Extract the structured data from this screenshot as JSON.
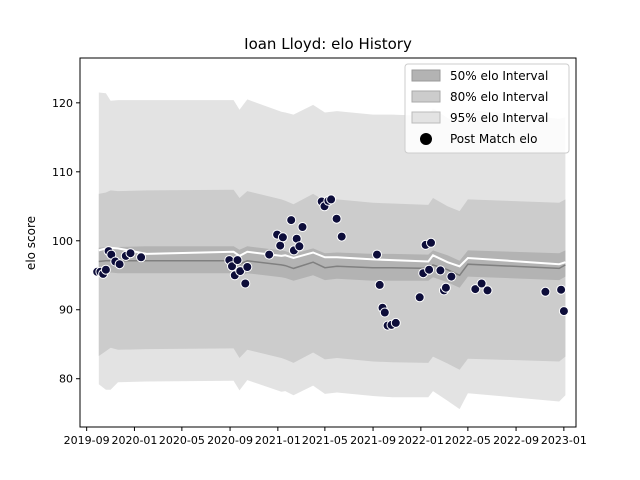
{
  "chart_data": {
    "type": "line",
    "title": "Ioan Lloyd: elo History",
    "xlabel": "",
    "ylabel": "elo score",
    "xlim": [
      "2019-08-15",
      "2023-02-01"
    ],
    "ylim": [
      73,
      126.5
    ],
    "x_ticks": [
      "2019-09",
      "2020-01",
      "2020-05",
      "2020-09",
      "2021-01",
      "2021-05",
      "2021-09",
      "2022-01",
      "2022-05",
      "2022-09",
      "2023-01"
    ],
    "y_ticks": [
      80,
      90,
      100,
      110,
      120
    ],
    "legend": {
      "placement": "top-right",
      "entries": [
        "50% elo Interval",
        "80% elo Interval",
        "95% elo Interval",
        "Post Match elo"
      ]
    },
    "colors": {
      "band50": "#b3b3b3",
      "band80": "#cccccc",
      "band95": "#e3e3e3",
      "mean_line": "#ffffff",
      "median_line": "#808080",
      "points": "#0d0d3a"
    },
    "bands": {
      "x": [
        "2019-10-02",
        "2019-10-20",
        "2019-11-01",
        "2019-11-20",
        "2020-02-01",
        "2020-09-10",
        "2020-09-25",
        "2020-10-15",
        "2021-01-10",
        "2021-01-20",
        "2021-02-10",
        "2021-04-01",
        "2021-05-01",
        "2021-06-01",
        "2021-09-01",
        "2021-10-20",
        "2022-01-20",
        "2022-02-01",
        "2022-03-10",
        "2022-04-10",
        "2022-05-01",
        "2022-12-20",
        "2023-01-05"
      ],
      "p50": [
        [
          95.2,
          99.0
        ],
        [
          95.4,
          99.1
        ],
        [
          95.4,
          99.1
        ],
        [
          95.3,
          99.1
        ],
        [
          95.3,
          99.2
        ],
        [
          95.3,
          99.2
        ],
        [
          94.8,
          98.7
        ],
        [
          95.3,
          99.2
        ],
        [
          94.7,
          98.6
        ],
        [
          94.6,
          98.5
        ],
        [
          94.2,
          98.1
        ],
        [
          95.0,
          98.9
        ],
        [
          94.3,
          98.2
        ],
        [
          94.5,
          98.3
        ],
        [
          94.2,
          98.1
        ],
        [
          94.2,
          98.1
        ],
        [
          94.2,
          98.0
        ],
        [
          94.7,
          98.6
        ],
        [
          94.0,
          97.9
        ],
        [
          93.2,
          97.1
        ],
        [
          94.8,
          98.6
        ],
        [
          94.3,
          98.2
        ],
        [
          94.8,
          98.6
        ]
      ],
      "p80": [
        [
          83.3,
          106.8
        ],
        [
          84.0,
          107.0
        ],
        [
          84.5,
          107.3
        ],
        [
          84.2,
          107.2
        ],
        [
          84.3,
          107.3
        ],
        [
          84.4,
          107.4
        ],
        [
          83.0,
          106.2
        ],
        [
          84.2,
          107.2
        ],
        [
          83.0,
          106.0
        ],
        [
          82.8,
          105.8
        ],
        [
          82.3,
          105.3
        ],
        [
          83.8,
          106.8
        ],
        [
          82.8,
          105.8
        ],
        [
          83.0,
          106.0
        ],
        [
          82.5,
          105.5
        ],
        [
          82.4,
          105.4
        ],
        [
          82.3,
          105.2
        ],
        [
          83.2,
          106.2
        ],
        [
          82.2,
          105.0
        ],
        [
          81.3,
          104.3
        ],
        [
          82.9,
          106.0
        ],
        [
          82.5,
          105.5
        ],
        [
          83.2,
          106.0
        ]
      ],
      "p95": [
        [
          79.2,
          121.5
        ],
        [
          78.4,
          121.4
        ],
        [
          78.4,
          120.3
        ],
        [
          79.5,
          120.4
        ],
        [
          79.6,
          120.4
        ],
        [
          79.7,
          120.4
        ],
        [
          78.3,
          119.0
        ],
        [
          79.8,
          120.5
        ],
        [
          78.1,
          118.7
        ],
        [
          78.2,
          118.6
        ],
        [
          77.6,
          118.3
        ],
        [
          79.0,
          119.7
        ],
        [
          77.8,
          118.6
        ],
        [
          78.0,
          118.8
        ],
        [
          77.5,
          118.3
        ],
        [
          77.3,
          118.3
        ],
        [
          77.3,
          118.1
        ],
        [
          78.2,
          119.2
        ],
        [
          76.8,
          117.8
        ],
        [
          75.6,
          117.0
        ],
        [
          77.9,
          119.0
        ],
        [
          76.7,
          117.7
        ],
        [
          77.6,
          117.9
        ]
      ]
    },
    "mean_line": {
      "x": [
        "2019-10-02",
        "2019-10-20",
        "2019-11-01",
        "2019-11-20",
        "2020-02-01",
        "2020-09-10",
        "2020-09-25",
        "2020-10-15",
        "2021-01-10",
        "2021-01-20",
        "2021-02-10",
        "2021-04-01",
        "2021-05-01",
        "2021-06-01",
        "2021-09-01",
        "2021-10-20",
        "2022-01-20",
        "2022-02-01",
        "2022-03-10",
        "2022-04-10",
        "2022-05-01",
        "2022-12-20",
        "2023-01-05"
      ],
      "y": [
        98.6,
        98.9,
        99.0,
        98.9,
        98.1,
        98.4,
        97.8,
        98.4,
        97.8,
        97.9,
        97.5,
        98.3,
        97.6,
        97.6,
        97.3,
        97.2,
        97.0,
        97.9,
        96.9,
        96.3,
        97.5,
        96.6,
        96.9
      ]
    },
    "median_line": {
      "x": [
        "2019-10-02",
        "2019-10-20",
        "2019-11-01",
        "2019-11-20",
        "2020-02-01",
        "2020-09-10",
        "2020-09-25",
        "2020-10-15",
        "2021-01-10",
        "2021-01-20",
        "2021-02-10",
        "2021-04-01",
        "2021-05-01",
        "2021-06-01",
        "2021-09-01",
        "2021-10-20",
        "2022-01-20",
        "2022-02-01",
        "2022-03-10",
        "2022-04-10",
        "2022-05-01",
        "2022-12-20",
        "2023-01-05"
      ],
      "y": [
        97.0,
        97.1,
        97.1,
        97.1,
        97.1,
        97.1,
        96.6,
        97.1,
        96.5,
        96.4,
        96.0,
        96.9,
        96.1,
        96.3,
        96.1,
        96.1,
        96.0,
        96.5,
        95.8,
        95.0,
        96.6,
        96.0,
        96.5
      ]
    },
    "series": [
      {
        "name": "Post Match elo",
        "points": [
          [
            "2019-09-28",
            95.5
          ],
          [
            "2019-10-06",
            95.5
          ],
          [
            "2019-10-13",
            95.2
          ],
          [
            "2019-10-20",
            95.8
          ],
          [
            "2019-10-27",
            98.5
          ],
          [
            "2019-11-03",
            98.0
          ],
          [
            "2019-11-13",
            97.0
          ],
          [
            "2019-11-24",
            96.6
          ],
          [
            "2019-12-10",
            97.8
          ],
          [
            "2019-12-22",
            98.2
          ],
          [
            "2020-01-18",
            97.6
          ],
          [
            "2020-08-30",
            97.2
          ],
          [
            "2020-09-06",
            96.3
          ],
          [
            "2020-09-13",
            95.0
          ],
          [
            "2020-09-20",
            97.2
          ],
          [
            "2020-09-27",
            95.6
          ],
          [
            "2020-10-10",
            93.8
          ],
          [
            "2020-10-15",
            96.2
          ],
          [
            "2020-12-10",
            98.0
          ],
          [
            "2020-12-30",
            100.9
          ],
          [
            "2021-01-07",
            99.3
          ],
          [
            "2021-01-14",
            100.5
          ],
          [
            "2021-02-04",
            103.0
          ],
          [
            "2021-02-11",
            98.6
          ],
          [
            "2021-02-18",
            100.3
          ],
          [
            "2021-02-25",
            99.2
          ],
          [
            "2021-03-05",
            102.0
          ],
          [
            "2021-04-23",
            105.7
          ],
          [
            "2021-04-30",
            105.0
          ],
          [
            "2021-05-10",
            105.8
          ],
          [
            "2021-05-17",
            106.0
          ],
          [
            "2021-05-31",
            103.2
          ],
          [
            "2021-06-13",
            100.6
          ],
          [
            "2021-09-11",
            98.0
          ],
          [
            "2021-09-18",
            93.6
          ],
          [
            "2021-09-25",
            90.3
          ],
          [
            "2021-10-01",
            89.6
          ],
          [
            "2021-10-08",
            87.7
          ],
          [
            "2021-10-18",
            87.8
          ],
          [
            "2021-10-29",
            88.1
          ],
          [
            "2021-12-29",
            91.8
          ],
          [
            "2022-01-07",
            95.3
          ],
          [
            "2022-01-13",
            99.4
          ],
          [
            "2022-01-22",
            95.8
          ],
          [
            "2022-01-27",
            99.7
          ],
          [
            "2022-02-20",
            95.7
          ],
          [
            "2022-03-01",
            92.8
          ],
          [
            "2022-03-06",
            93.2
          ],
          [
            "2022-03-20",
            94.8
          ],
          [
            "2022-05-20",
            93.0
          ],
          [
            "2022-06-05",
            93.8
          ],
          [
            "2022-06-20",
            92.8
          ],
          [
            "2022-11-15",
            92.6
          ],
          [
            "2022-12-25",
            92.9
          ],
          [
            "2023-01-01",
            89.8
          ]
        ]
      }
    ]
  }
}
